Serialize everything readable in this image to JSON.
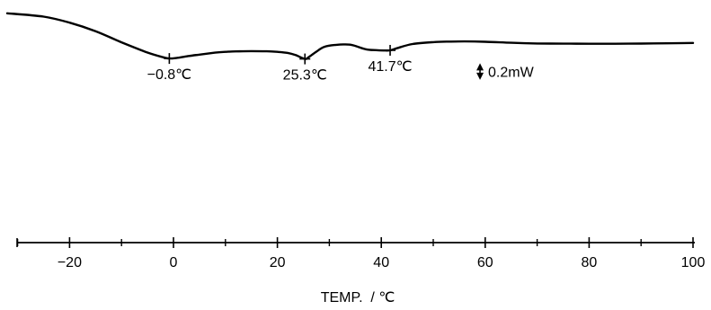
{
  "chart_data": {
    "type": "line",
    "xlabel": "TEMP.  / ℃",
    "ylabel": "",
    "xlim": [
      -32,
      100
    ],
    "x_ticks": [
      -20,
      0,
      20,
      40,
      60,
      80,
      100
    ],
    "x_minor_ticks": [
      -30,
      -10,
      10,
      30,
      50,
      70,
      90
    ],
    "grid": false,
    "series": [
      {
        "x": [
          -32,
          -25,
          -20,
          -15,
          -10,
          -5,
          -2,
          -0.8,
          1,
          3,
          5,
          8,
          10,
          12,
          15,
          18,
          20,
          22,
          23.5,
          25.3,
          26,
          27.5,
          29,
          31,
          34,
          37,
          39,
          40.5,
          41.7,
          43,
          46,
          50,
          53,
          56,
          60,
          65,
          70,
          75,
          80,
          85,
          90,
          95,
          100
        ],
        "y": [
          95,
          91,
          84,
          74,
          61,
          49,
          43.5,
          42,
          43,
          45,
          46.5,
          48.8,
          49.8,
          50.3,
          50.6,
          50.4,
          49.8,
          48.5,
          46,
          41.5,
          43.5,
          50,
          55.5,
          57.8,
          58.2,
          52.8,
          51.8,
          51.4,
          51.6,
          54,
          59,
          61.2,
          61.8,
          62,
          61.6,
          60.4,
          59.6,
          59.4,
          59.3,
          59.3,
          59.5,
          59.8,
          60.2
        ]
      }
    ],
    "annotations": [
      {
        "text": "−0.8℃",
        "x": -0.8,
        "y": 42
      },
      {
        "text": "25.3℃",
        "x": 25.3,
        "y": 41.5
      },
      {
        "text": "41.7℃",
        "x": 41.7,
        "y": 51.6
      }
    ],
    "scale_bar": {
      "label": "0.2mW",
      "x": 59,
      "from": 36.5,
      "to": 17
    }
  }
}
